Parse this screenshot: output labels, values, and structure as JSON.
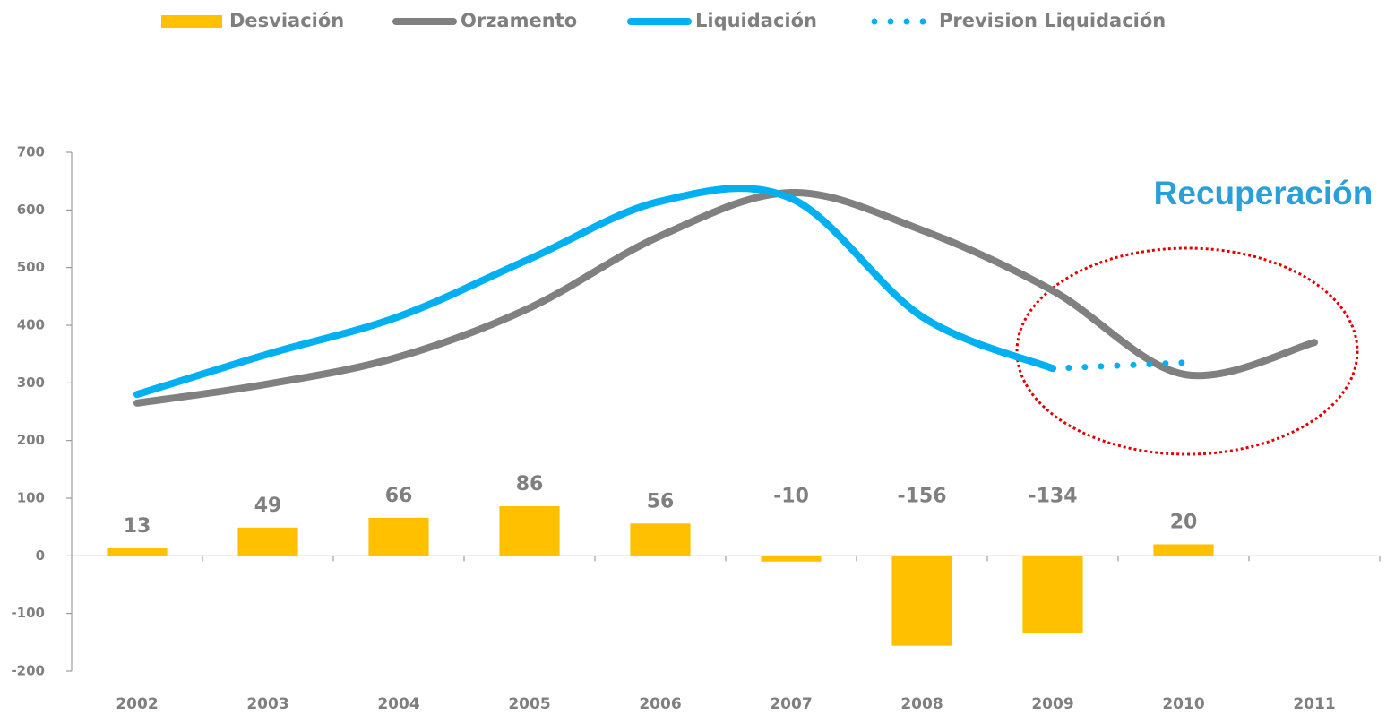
{
  "chart_data": {
    "type": "bar-line",
    "categories": [
      "2002",
      "2003",
      "2004",
      "2005",
      "2006",
      "2007",
      "2008",
      "2009",
      "2010",
      "2011"
    ],
    "series": [
      {
        "name": "Desviación",
        "type": "bar",
        "color": "#ffc000",
        "values": [
          13,
          49,
          66,
          86,
          56,
          -10,
          -156,
          -134,
          20,
          null
        ]
      },
      {
        "name": "Orzamento",
        "type": "line",
        "color": "#808080",
        "values": [
          265,
          298,
          345,
          430,
          555,
          630,
          565,
          460,
          315,
          370
        ]
      },
      {
        "name": "Liquidación",
        "type": "line",
        "color": "#00b0f0",
        "values": [
          280,
          350,
          415,
          515,
          615,
          620,
          415,
          325,
          null,
          null
        ]
      },
      {
        "name": "Prevision Liquidación",
        "type": "line",
        "dotted": true,
        "color": "#00b0f0",
        "values": [
          null,
          null,
          null,
          null,
          null,
          null,
          null,
          325,
          335,
          null
        ]
      }
    ],
    "annotation": "Recuperación",
    "ylim": [
      -200,
      700
    ],
    "yticks": [
      -200,
      -100,
      0,
      100,
      200,
      300,
      400,
      500,
      600,
      700
    ],
    "grid": false,
    "legend": "top"
  }
}
